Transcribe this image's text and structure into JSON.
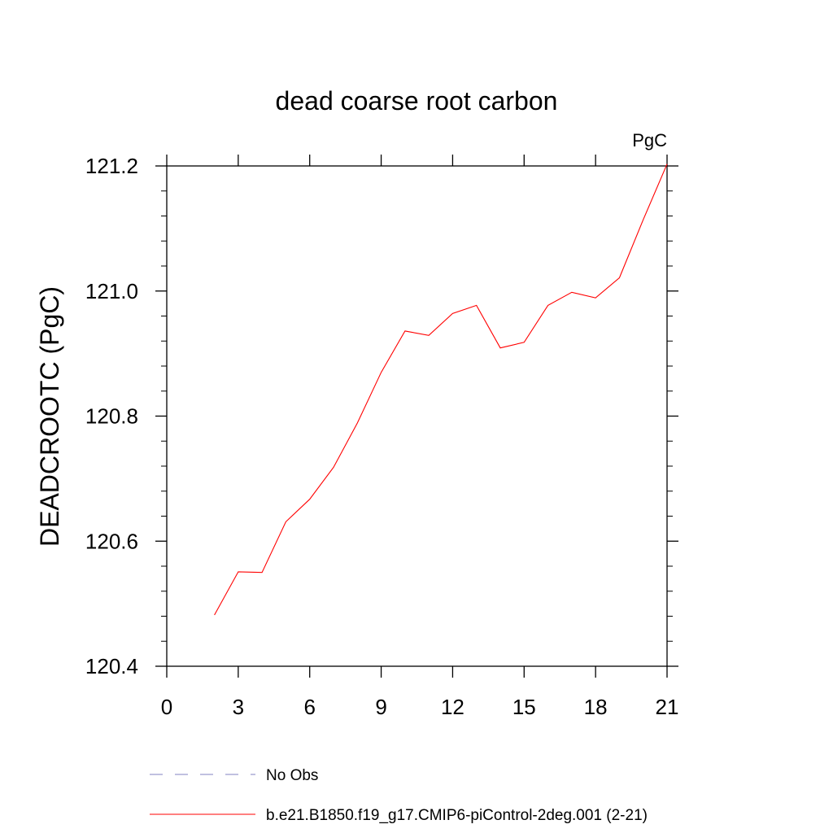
{
  "chart_data": {
    "type": "line",
    "title": "dead coarse root carbon",
    "units": "PgC",
    "ylabel": "DEADCROOTC  (PgC)",
    "xlabel": "",
    "xlim": [
      0,
      21
    ],
    "ylim": [
      120.4,
      121.2
    ],
    "xticks": [
      0,
      3,
      6,
      9,
      12,
      15,
      18,
      21
    ],
    "xtick_labels": [
      "0",
      "3",
      "6",
      "9",
      "12",
      "15",
      "18",
      "21"
    ],
    "yticks": [
      120.4,
      120.6,
      120.8,
      121.0,
      121.2
    ],
    "ytick_labels": [
      "120.4",
      "120.6",
      "120.8",
      "121.0",
      "121.2"
    ],
    "grid": false,
    "legend_position": "bottom",
    "series": [
      {
        "name": "b.e21.B1850.f19_g17.CMIP6-piControl-2deg.001 (2-21)",
        "color": "#ff0000",
        "style": "solid",
        "x": [
          2,
          3,
          4,
          5,
          6,
          7,
          8,
          9,
          10,
          11,
          12,
          13,
          14,
          15,
          16,
          17,
          18,
          19,
          20,
          21
        ],
        "y": [
          120.482,
          120.551,
          120.55,
          120.631,
          120.667,
          120.718,
          120.789,
          120.87,
          120.936,
          120.929,
          120.964,
          120.977,
          120.909,
          120.918,
          120.977,
          120.998,
          120.989,
          121.021,
          121.114,
          121.203
        ]
      }
    ],
    "legend": [
      {
        "label": "No Obs",
        "color": "#8080c0",
        "style": "dashed"
      },
      {
        "label": "b.e21.B1850.f19_g17.CMIP6-piControl-2deg.001 (2-21)",
        "color": "#ff0000",
        "style": "solid"
      }
    ]
  }
}
